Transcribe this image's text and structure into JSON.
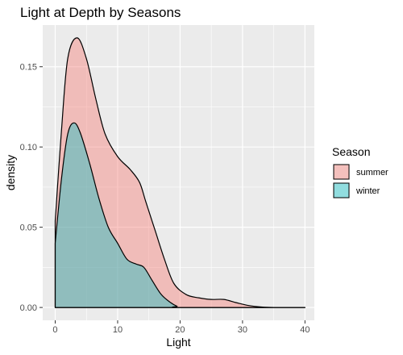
{
  "chart_data": {
    "type": "area",
    "title": "Light at Depth by Seasons",
    "xlabel": "Light",
    "ylabel": "density",
    "xlim": [
      -2,
      41.5
    ],
    "ylim": [
      -0.008,
      0.176
    ],
    "x_ticks": [
      0,
      10,
      20,
      30,
      40
    ],
    "x_tick_labels": [
      "0",
      "10",
      "20",
      "30",
      "40"
    ],
    "y_ticks": [
      0,
      0.05,
      0.1,
      0.15
    ],
    "y_tick_labels": [
      "0.00",
      "0.05",
      "0.10",
      "0.15"
    ],
    "grid": true,
    "legend": {
      "title": "Season",
      "position": "right"
    },
    "series": [
      {
        "name": "summer",
        "color": "#F8766D",
        "points": [
          [
            0,
            0.054
          ],
          [
            1,
            0.11
          ],
          [
            2,
            0.155
          ],
          [
            3.5,
            0.168
          ],
          [
            5,
            0.155
          ],
          [
            6.5,
            0.13
          ],
          [
            8,
            0.108
          ],
          [
            10,
            0.094
          ],
          [
            12,
            0.086
          ],
          [
            13.5,
            0.078
          ],
          [
            14.5,
            0.066
          ],
          [
            16,
            0.048
          ],
          [
            17.5,
            0.03
          ],
          [
            19,
            0.015
          ],
          [
            21,
            0.008
          ],
          [
            23,
            0.006
          ],
          [
            25,
            0.005
          ],
          [
            27,
            0.005
          ],
          [
            29,
            0.003
          ],
          [
            31,
            0.0012
          ],
          [
            33,
            0.0003
          ],
          [
            35,
            0
          ],
          [
            40,
            0
          ]
        ]
      },
      {
        "name": "winter",
        "color": "#00BFC4",
        "points": [
          [
            0,
            0.04
          ],
          [
            1,
            0.08
          ],
          [
            2,
            0.108
          ],
          [
            3,
            0.115
          ],
          [
            4,
            0.109
          ],
          [
            5.5,
            0.09
          ],
          [
            7,
            0.068
          ],
          [
            8.5,
            0.05
          ],
          [
            10,
            0.04
          ],
          [
            11.5,
            0.03
          ],
          [
            13,
            0.027
          ],
          [
            14.2,
            0.025
          ],
          [
            15.5,
            0.017
          ],
          [
            17,
            0.008
          ],
          [
            18.5,
            0.003
          ],
          [
            19.5,
            0.0008
          ],
          [
            20.5,
            0
          ],
          [
            40,
            0
          ]
        ]
      }
    ]
  }
}
